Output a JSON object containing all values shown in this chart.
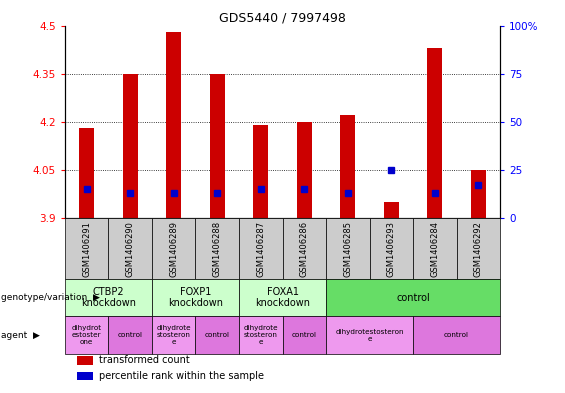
{
  "title": "GDS5440 / 7997498",
  "samples": [
    "GSM1406291",
    "GSM1406290",
    "GSM1406289",
    "GSM1406288",
    "GSM1406287",
    "GSM1406286",
    "GSM1406285",
    "GSM1406293",
    "GSM1406284",
    "GSM1406292"
  ],
  "transformed_counts": [
    4.18,
    4.35,
    4.48,
    4.35,
    4.19,
    4.2,
    4.22,
    3.95,
    4.43,
    4.05
  ],
  "percentile_ranks": [
    15,
    13,
    13,
    13,
    15,
    15,
    13,
    25,
    13,
    17
  ],
  "bar_bottom": 3.9,
  "ylim_left": [
    3.9,
    4.5
  ],
  "ylim_right": [
    0,
    100
  ],
  "yticks_left": [
    3.9,
    4.05,
    4.2,
    4.35,
    4.5
  ],
  "yticks_right": [
    0,
    25,
    50,
    75,
    100
  ],
  "ytick_labels_left": [
    "3.9",
    "4.05",
    "4.2",
    "4.35",
    "4.5"
  ],
  "ytick_labels_right": [
    "0",
    "25",
    "50",
    "75",
    "100%"
  ],
  "grid_yticks": [
    4.05,
    4.2,
    4.35
  ],
  "bar_color": "#cc0000",
  "percentile_color": "#0000cc",
  "genotype_groups": [
    {
      "label": "CTBP2\nknockdown",
      "start": 0,
      "end": 2,
      "color": "#ccffcc"
    },
    {
      "label": "FOXP1\nknockdown",
      "start": 2,
      "end": 4,
      "color": "#ccffcc"
    },
    {
      "label": "FOXA1\nknockdown",
      "start": 4,
      "end": 6,
      "color": "#ccffcc"
    },
    {
      "label": "control",
      "start": 6,
      "end": 10,
      "color": "#66dd66"
    }
  ],
  "agent_groups": [
    {
      "label": "dihydrot\nestoster\none",
      "start": 0,
      "end": 1,
      "color": "#ee99ee"
    },
    {
      "label": "control",
      "start": 1,
      "end": 2,
      "color": "#dd77dd"
    },
    {
      "label": "dihydrote\nstosteron\ne",
      "start": 2,
      "end": 3,
      "color": "#ee99ee"
    },
    {
      "label": "control",
      "start": 3,
      "end": 4,
      "color": "#dd77dd"
    },
    {
      "label": "dihydrote\nstosteron\ne",
      "start": 4,
      "end": 5,
      "color": "#ee99ee"
    },
    {
      "label": "control",
      "start": 5,
      "end": 6,
      "color": "#dd77dd"
    },
    {
      "label": "dihydrotestosteron\ne",
      "start": 6,
      "end": 8,
      "color": "#ee99ee"
    },
    {
      "label": "control",
      "start": 8,
      "end": 10,
      "color": "#dd77dd"
    }
  ],
  "sample_bg_color": "#cccccc",
  "legend_items": [
    {
      "color": "#cc0000",
      "label": "transformed count"
    },
    {
      "color": "#0000cc",
      "label": "percentile rank within the sample"
    }
  ]
}
